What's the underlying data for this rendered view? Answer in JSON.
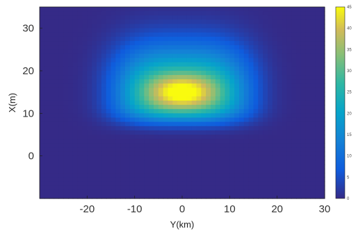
{
  "chart_data": {
    "type": "heatmap",
    "title": "",
    "xlabel": "Y(km)",
    "ylabel": "X(m)",
    "xlim": [
      -30,
      30
    ],
    "ylim": [
      -10,
      35
    ],
    "x_ticks": [
      "-20",
      "-10",
      "0",
      "10",
      "20",
      "30"
    ],
    "y_ticks": [
      "0",
      "10",
      "20",
      "30"
    ],
    "x_tick_values": [
      -20,
      -10,
      0,
      10,
      20,
      30
    ],
    "y_tick_values": [
      0,
      10,
      20,
      30
    ],
    "colormap": "parula",
    "colorbar_range": [
      0,
      45
    ],
    "colorbar_ticks": [
      "0",
      "5",
      "10",
      "15",
      "20",
      "25",
      "30",
      "35",
      "40",
      "45"
    ],
    "colorbar_tick_values": [
      0,
      5,
      10,
      15,
      20,
      25,
      30,
      35,
      40,
      45
    ],
    "peak": {
      "x": 0,
      "y": 15,
      "value": 45
    },
    "grid": false,
    "colors": {
      "low": "#352a87",
      "mid": "#2fb7b9",
      "high": "#f9fb0e"
    }
  }
}
